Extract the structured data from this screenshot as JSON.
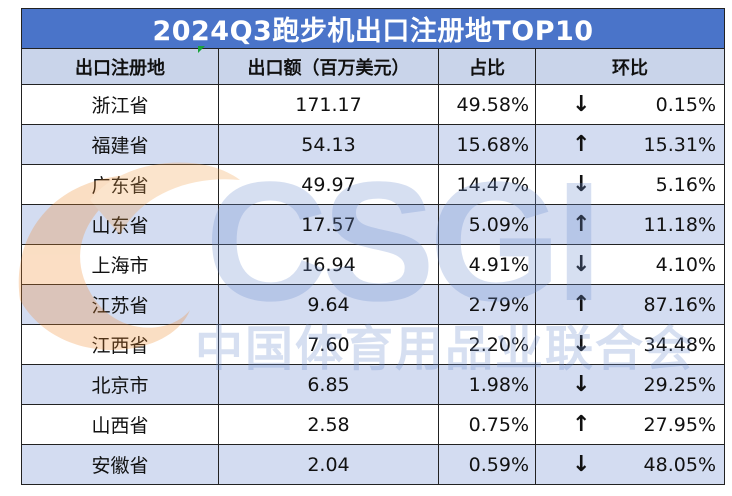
{
  "title": "2024Q3跑步机出口注册地TOP10",
  "headers": {
    "province": "出口注册地",
    "export": "出口额（百万美元）",
    "share": "占比",
    "mom": "环比"
  },
  "rows": [
    {
      "province": "浙江省",
      "export": "171.17",
      "share": "49.58%",
      "dir": "down",
      "mom": "0.15%"
    },
    {
      "province": "福建省",
      "export": "54.13",
      "share": "15.68%",
      "dir": "up",
      "mom": "15.31%"
    },
    {
      "province": "广东省",
      "export": "49.97",
      "share": "14.47%",
      "dir": "down",
      "mom": "5.16%"
    },
    {
      "province": "山东省",
      "export": "17.57",
      "share": "5.09%",
      "dir": "up",
      "mom": "11.18%"
    },
    {
      "province": "上海市",
      "export": "16.94",
      "share": "4.91%",
      "dir": "down",
      "mom": "4.10%"
    },
    {
      "province": "江苏省",
      "export": "9.64",
      "share": "2.79%",
      "dir": "up",
      "mom": "87.16%"
    },
    {
      "province": "江西省",
      "export": "7.60",
      "share": "2.20%",
      "dir": "down",
      "mom": "34.48%"
    },
    {
      "province": "北京市",
      "export": "6.85",
      "share": "1.98%",
      "dir": "down",
      "mom": "29.25%"
    },
    {
      "province": "山西省",
      "export": "2.58",
      "share": "0.75%",
      "dir": "up",
      "mom": "27.95%"
    },
    {
      "province": "安徽省",
      "export": "2.04",
      "share": "0.59%",
      "dir": "down",
      "mom": "48.05%"
    }
  ],
  "arrows": {
    "up": "↑",
    "down": "↓"
  },
  "watermark": {
    "logo": "CSGI",
    "text": "中国体育用品业联合会"
  },
  "colors": {
    "title_bg": "#4a74c9",
    "header_bg": "#c9d4ea",
    "band_bg": "#d3dcf1",
    "accent": "#1aa33a"
  }
}
